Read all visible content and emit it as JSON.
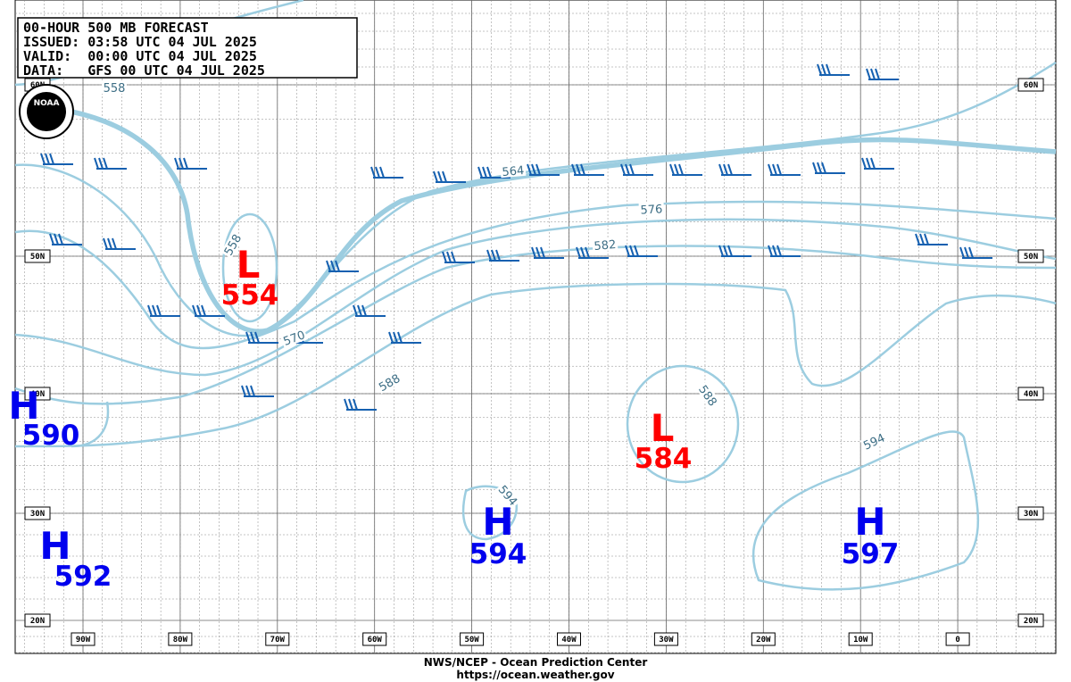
{
  "header": {
    "lines": [
      "00-HOUR 500 MB FORECAST",
      "ISSUED: 03:58 UTC 04 JUL 2025",
      "VALID:  00:00 UTC 04 JUL 2025",
      "DATA:   GFS 00 UTC 04 JUL 2025"
    ]
  },
  "logo": "NOAA",
  "map": {
    "lat_labels": [
      "60N",
      "50N",
      "40N",
      "30N",
      "20N"
    ],
    "lon_labels": [
      "90W",
      "80W",
      "70W",
      "60W",
      "50W",
      "40W",
      "30W",
      "20W",
      "10W",
      "0"
    ],
    "contour_labels": [
      "558",
      "558",
      "564",
      "570",
      "576",
      "582",
      "588",
      "588",
      "594",
      "594"
    ],
    "centers": [
      {
        "letter": "L",
        "value": 554
      },
      {
        "letter": "H",
        "value": 590
      },
      {
        "letter": "H",
        "value": 592
      },
      {
        "letter": "H",
        "value": 594
      },
      {
        "letter": "L",
        "value": 584
      },
      {
        "letter": "H",
        "value": 597
      }
    ]
  },
  "footer": {
    "lines": [
      "NWS/NCEP - Ocean Prediction Center",
      "https://ocean.weather.gov"
    ]
  }
}
